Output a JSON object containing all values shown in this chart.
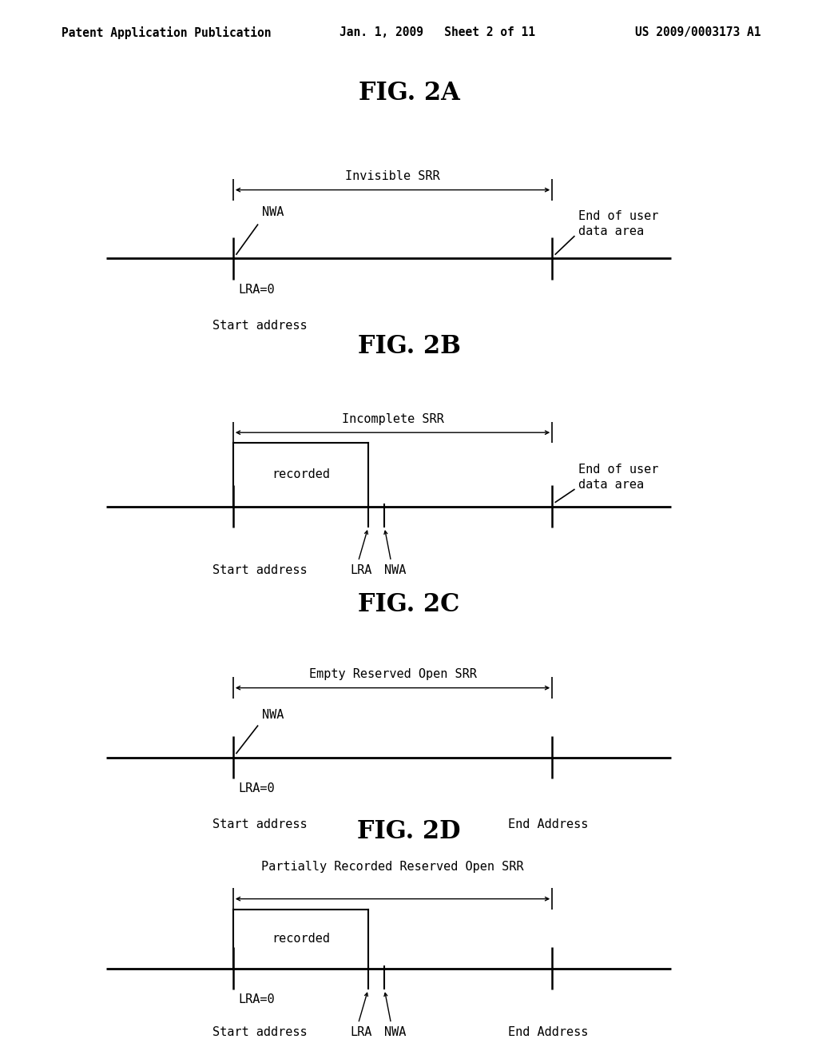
{
  "background_color": "#ffffff",
  "header_left": "Patent Application Publication",
  "header_mid": "Jan. 1, 2009   Sheet 2 of 11",
  "header_right": "US 2009/0003173 A1",
  "header_fontsize": 10.5,
  "fig_title_fontsize": 22
}
